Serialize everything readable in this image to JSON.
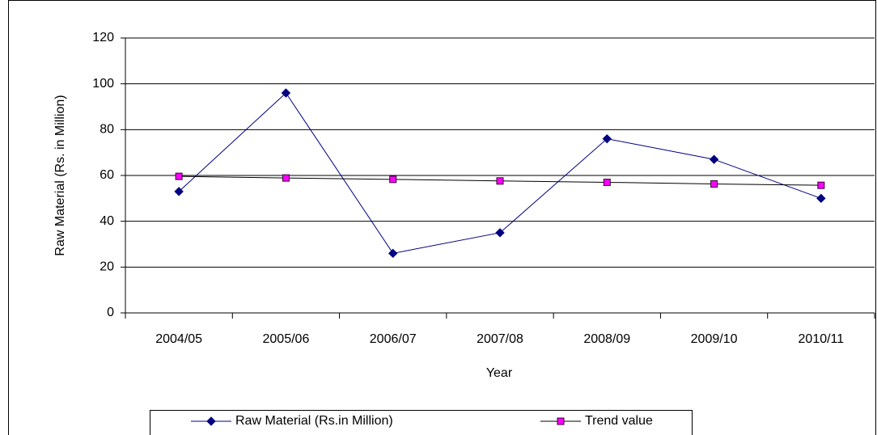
{
  "chart_data": {
    "type": "line",
    "x_label": "Year",
    "y_label": "Raw Material (Rs. in Million)",
    "categories": [
      "2004/05",
      "2005/06",
      "2006/07",
      "2007/08",
      "2008/09",
      "2009/10",
      "2010/11"
    ],
    "series": [
      {
        "name": "Raw Material (Rs.in Million)",
        "color": "#000080",
        "marker": "diamond",
        "values": [
          53,
          96,
          26,
          35,
          76,
          67,
          50
        ]
      },
      {
        "name": "Trend value",
        "color": "#000000",
        "marker_color": "#ff00ff",
        "marker": "square",
        "values": [
          59.6,
          58.9,
          58.3,
          57.6,
          57.0,
          56.3,
          55.7
        ]
      }
    ],
    "ylim": [
      0,
      120
    ],
    "yticks": [
      0,
      20,
      40,
      60,
      80,
      100,
      120
    ],
    "grid": true,
    "legend": "bottom"
  }
}
